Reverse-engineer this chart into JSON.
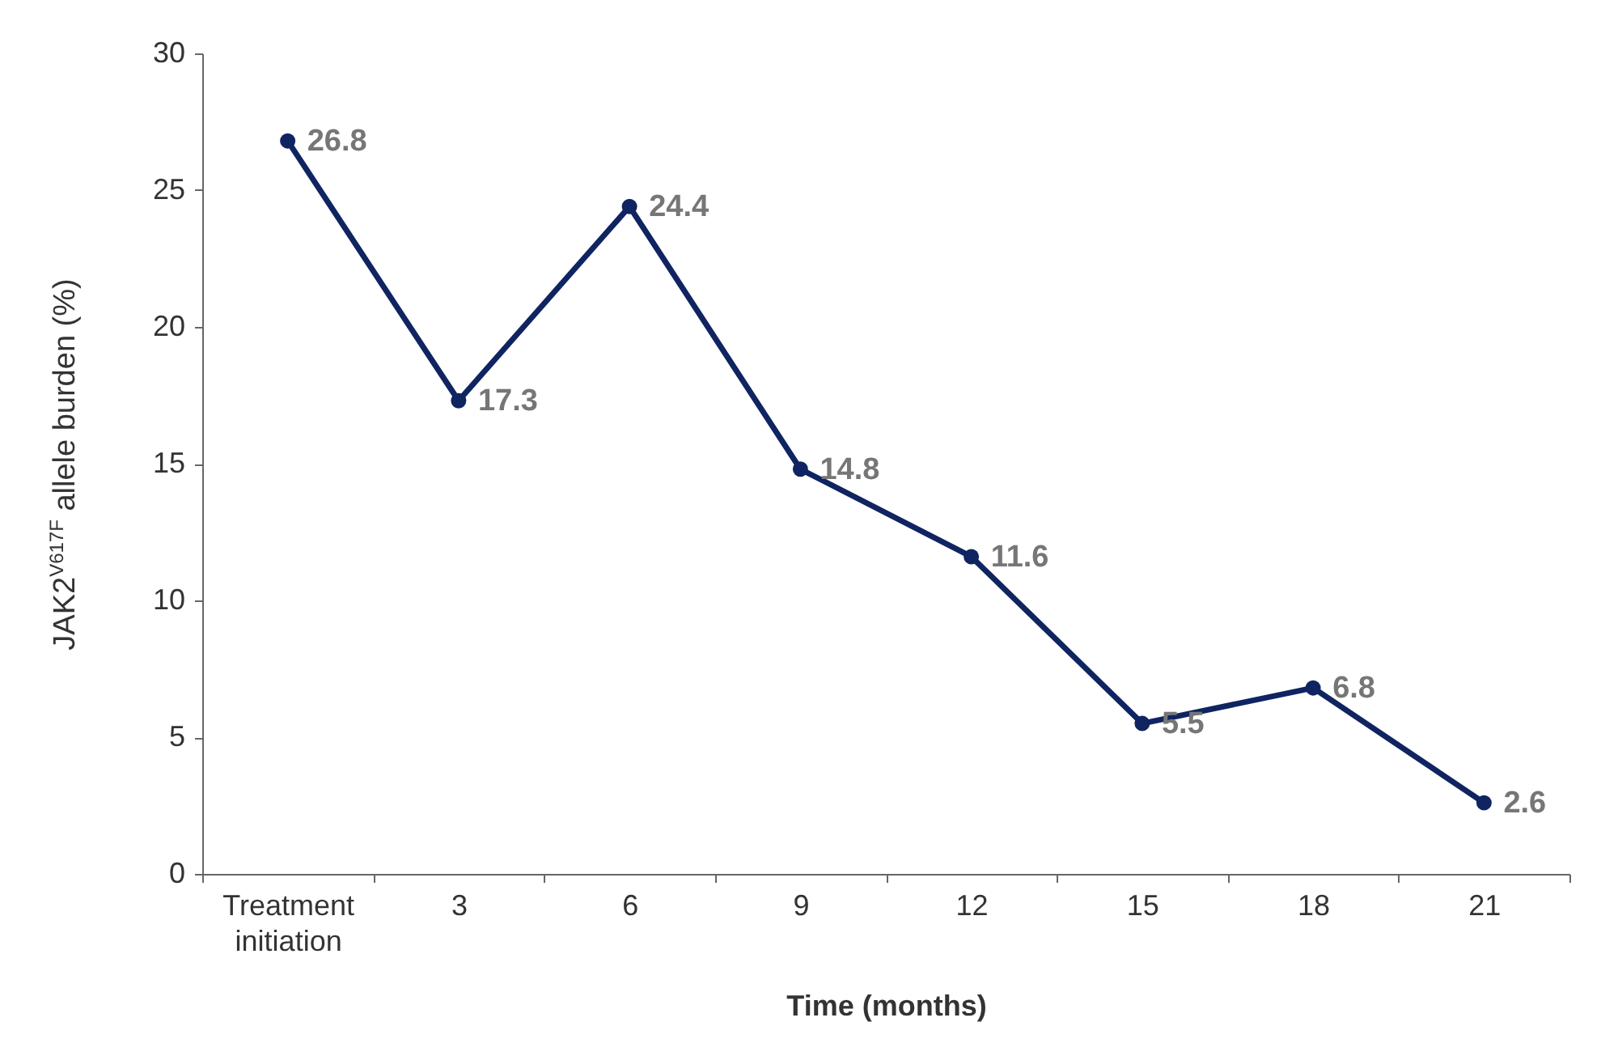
{
  "chart_data": {
    "type": "line",
    "categories": [
      "Treatment initiation",
      "3",
      "6",
      "9",
      "12",
      "15",
      "18",
      "21"
    ],
    "series": [
      {
        "color": "#0f2461",
        "values": [
          26.8,
          17.3,
          24.4,
          14.8,
          11.6,
          5.5,
          6.8,
          2.6
        ]
      }
    ],
    "xlabel": "Time (months)",
    "ylabel": "JAK2$^{V617F}$ allele burden (%)",
    "ylim": [
      0,
      30
    ],
    "yticks": [
      0,
      5,
      10,
      15,
      20,
      25,
      30
    ],
    "marker": "circle",
    "data_labels": true,
    "grid": false
  }
}
